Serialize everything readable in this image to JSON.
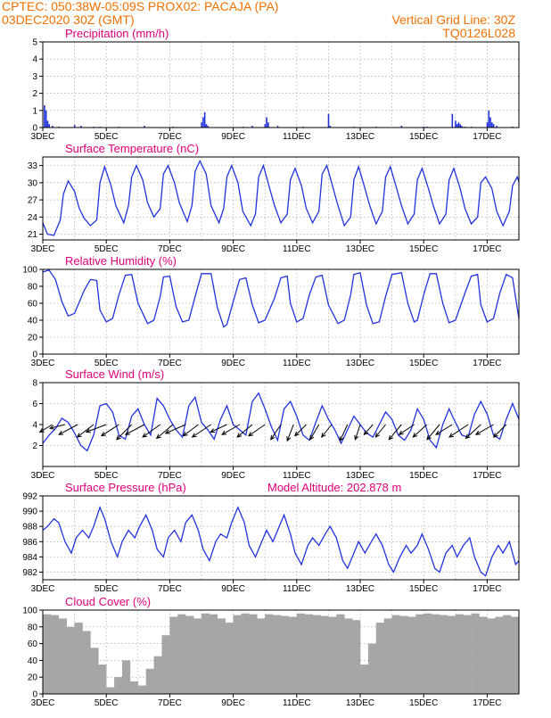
{
  "header": {
    "line1_left": "CPTEC:   050:38W-05:09S   PROX02: PACAJA (PA)",
    "line2_left": "03DEC2020 30Z (GMT)",
    "line1_right": "Vertical Grid Line: 30Z",
    "line2_right": "TQ0126L028",
    "color": "#f07000"
  },
  "title_color": "#e0007a",
  "line_color": "#2233dd",
  "cloud_color": "#a6a6a6",
  "x_ticks": [
    "3DEC",
    "5DEC",
    "7DEC",
    "9DEC",
    "11DEC",
    "13DEC",
    "15DEC",
    "17DEC"
  ],
  "x_range_days": [
    3,
    18
  ],
  "chart_data": [
    {
      "id": "precip",
      "type": "bar",
      "title": "Precipitation (mm/h)",
      "ylim": [
        0,
        5
      ],
      "yticks": [
        0,
        1,
        2,
        3,
        4,
        5
      ],
      "grid": true,
      "x_days": [
        3.05,
        3.1,
        3.15,
        3.2,
        3.3,
        3.5,
        4.0,
        4.2,
        4.6,
        4.8,
        5.4,
        6.2,
        7.1,
        8.0,
        8.05,
        8.1,
        8.15,
        8.2,
        9.3,
        9.6,
        10.0,
        10.05,
        10.1,
        10.4,
        11.2,
        12.0,
        12.05,
        12.8,
        13.5,
        14.3,
        15.0,
        15.1,
        15.9,
        16.0,
        16.05,
        16.1,
        16.15,
        16.2,
        16.3,
        16.5,
        17.0,
        17.05,
        17.1,
        17.15,
        17.2,
        17.3,
        17.8
      ],
      "values": [
        1.3,
        1.0,
        0.4,
        0.2,
        0.1,
        0.05,
        0.15,
        0.1,
        0.05,
        0.05,
        0.05,
        0.1,
        0.05,
        0.3,
        0.6,
        0.9,
        0.2,
        0.1,
        0.05,
        0.1,
        0.2,
        0.6,
        0.3,
        0.1,
        0.05,
        0.8,
        0.1,
        0.05,
        0.05,
        0.1,
        0.05,
        0.05,
        0.8,
        0.4,
        0.2,
        0.3,
        0.2,
        0.1,
        0.05,
        0.05,
        0.3,
        1.0,
        0.6,
        0.3,
        0.2,
        0.1,
        0.05
      ]
    },
    {
      "id": "temp",
      "type": "line",
      "title": "Surface Temperature (nC)",
      "ylim": [
        20,
        34.5
      ],
      "yticks": [
        21,
        24,
        27,
        30,
        33
      ],
      "grid": true,
      "x_days": [
        3.0,
        3.15,
        3.35,
        3.55,
        3.65,
        3.8,
        4.0,
        4.15,
        4.3,
        4.5,
        4.7,
        4.8,
        4.95,
        5.15,
        5.3,
        5.55,
        5.7,
        5.8,
        5.95,
        6.15,
        6.3,
        6.5,
        6.7,
        6.8,
        6.95,
        7.15,
        7.3,
        7.55,
        7.7,
        7.8,
        7.95,
        8.15,
        8.3,
        8.55,
        8.7,
        8.8,
        8.95,
        9.15,
        9.3,
        9.55,
        9.7,
        9.8,
        9.95,
        10.15,
        10.3,
        10.5,
        10.7,
        10.8,
        10.95,
        11.15,
        11.3,
        11.5,
        11.7,
        11.8,
        11.95,
        12.15,
        12.3,
        12.5,
        12.7,
        12.8,
        12.95,
        13.15,
        13.3,
        13.5,
        13.7,
        13.8,
        13.95,
        14.15,
        14.3,
        14.5,
        14.7,
        14.8,
        14.95,
        15.15,
        15.3,
        15.5,
        15.7,
        15.8,
        15.95,
        16.15,
        16.3,
        16.5,
        16.7,
        16.8,
        16.95,
        17.15,
        17.3,
        17.5,
        17.7,
        17.8,
        17.95,
        18.0
      ],
      "values": [
        23.0,
        21.0,
        20.8,
        23.5,
        28.0,
        30.3,
        28.5,
        25.5,
        23.8,
        22.5,
        23.5,
        30.0,
        32.8,
        29.5,
        26.0,
        23.0,
        26.0,
        31.0,
        33.0,
        30.5,
        26.5,
        24.0,
        25.5,
        31.5,
        33.0,
        30.0,
        26.5,
        23.2,
        26.0,
        32.0,
        33.8,
        31.5,
        26.0,
        23.0,
        25.5,
        31.0,
        33.0,
        30.0,
        25.0,
        22.5,
        24.5,
        31.0,
        33.0,
        29.0,
        26.0,
        23.0,
        24.5,
        30.5,
        32.5,
        29.5,
        25.5,
        23.0,
        25.0,
        31.5,
        33.0,
        29.0,
        26.0,
        22.5,
        24.0,
        30.5,
        32.8,
        29.0,
        26.0,
        22.8,
        25.0,
        31.0,
        32.8,
        29.0,
        26.0,
        22.8,
        24.5,
        30.5,
        32.5,
        29.0,
        26.0,
        22.8,
        24.5,
        30.5,
        32.5,
        29.0,
        25.5,
        22.8,
        24.0,
        30.0,
        31.0,
        29.0,
        25.0,
        22.5,
        25.0,
        29.5,
        31.0,
        30.2
      ]
    },
    {
      "id": "rh",
      "type": "line",
      "title": "Relative Humidity (%)",
      "ylim": [
        0,
        100
      ],
      "yticks": [
        0,
        20,
        40,
        60,
        80,
        100
      ],
      "grid": true,
      "x_days": [
        3.0,
        3.2,
        3.4,
        3.6,
        3.8,
        4.0,
        4.3,
        4.5,
        4.7,
        4.8,
        5.0,
        5.2,
        5.4,
        5.6,
        5.8,
        6.0,
        6.3,
        6.5,
        6.7,
        6.8,
        7.0,
        7.2,
        7.4,
        7.6,
        7.8,
        8.0,
        8.3,
        8.5,
        8.7,
        8.8,
        9.0,
        9.2,
        9.4,
        9.6,
        9.8,
        10.0,
        10.3,
        10.5,
        10.7,
        10.8,
        11.0,
        11.2,
        11.4,
        11.6,
        11.8,
        12.0,
        12.3,
        12.5,
        12.7,
        12.8,
        13.0,
        13.2,
        13.4,
        13.6,
        13.8,
        14.0,
        14.3,
        14.5,
        14.7,
        14.8,
        15.0,
        15.2,
        15.4,
        15.6,
        15.8,
        16.0,
        16.3,
        16.5,
        16.7,
        16.8,
        17.0,
        17.2,
        17.4,
        17.6,
        17.8,
        18.0
      ],
      "values": [
        97,
        99,
        88,
        62,
        45,
        48,
        75,
        88,
        87,
        52,
        38,
        42,
        70,
        93,
        94,
        60,
        36,
        40,
        68,
        91,
        92,
        56,
        38,
        40,
        68,
        95,
        95,
        55,
        32,
        35,
        62,
        88,
        90,
        58,
        37,
        40,
        66,
        90,
        92,
        60,
        38,
        42,
        70,
        91,
        93,
        58,
        36,
        40,
        70,
        94,
        96,
        58,
        36,
        38,
        68,
        94,
        96,
        60,
        38,
        40,
        70,
        95,
        95,
        60,
        37,
        40,
        72,
        92,
        94,
        58,
        38,
        42,
        72,
        94,
        90,
        42
      ]
    },
    {
      "id": "wind",
      "type": "line",
      "title": "Surface Wind (m/s)",
      "ylim": [
        0,
        8
      ],
      "yticks": [
        2,
        4,
        6,
        8
      ],
      "grid": true,
      "x_days": [
        3.0,
        3.2,
        3.4,
        3.6,
        3.8,
        4.0,
        4.2,
        4.4,
        4.6,
        4.8,
        5.0,
        5.2,
        5.4,
        5.6,
        5.8,
        6.0,
        6.2,
        6.4,
        6.6,
        6.8,
        7.0,
        7.2,
        7.4,
        7.6,
        7.8,
        8.0,
        8.2,
        8.4,
        8.6,
        8.8,
        9.0,
        9.2,
        9.4,
        9.6,
        9.8,
        10.0,
        10.2,
        10.4,
        10.6,
        10.8,
        11.0,
        11.2,
        11.4,
        11.6,
        11.8,
        12.0,
        12.2,
        12.4,
        12.6,
        12.8,
        13.0,
        13.2,
        13.4,
        13.6,
        13.8,
        14.0,
        14.2,
        14.4,
        14.6,
        14.8,
        15.0,
        15.2,
        15.4,
        15.6,
        15.8,
        16.0,
        16.2,
        16.4,
        16.6,
        16.8,
        17.0,
        17.2,
        17.4,
        17.6,
        17.8,
        18.0
      ],
      "values": [
        2.2,
        3.0,
        3.6,
        4.6,
        4.2,
        3.2,
        2.0,
        1.5,
        3.0,
        5.8,
        6.0,
        5.2,
        3.0,
        2.6,
        4.8,
        5.5,
        4.0,
        3.0,
        6.5,
        5.8,
        4.5,
        3.5,
        2.8,
        5.8,
        6.6,
        4.2,
        3.5,
        2.6,
        4.5,
        5.8,
        4.0,
        3.5,
        3.0,
        6.2,
        7.0,
        5.5,
        3.8,
        2.5,
        5.5,
        6.2,
        4.8,
        3.0,
        2.5,
        4.2,
        5.8,
        4.5,
        3.5,
        2.2,
        3.5,
        4.8,
        4.0,
        3.2,
        2.8,
        4.0,
        5.2,
        4.5,
        3.0,
        2.5,
        3.5,
        5.5,
        4.5,
        2.5,
        1.8,
        4.0,
        5.5,
        4.2,
        3.0,
        2.8,
        5.0,
        6.2,
        5.0,
        3.0,
        2.6,
        4.5,
        6.0,
        4.5
      ],
      "arrows": {
        "x_days": [
          3.3,
          3.7,
          4.1,
          4.6,
          5.0,
          5.4,
          5.8,
          6.2,
          6.7,
          7.1,
          7.5,
          7.9,
          8.3,
          8.8,
          9.2,
          9.6,
          10.0,
          10.5,
          10.9,
          11.3,
          11.7,
          12.1,
          12.6,
          13.0,
          13.4,
          13.8,
          14.3,
          14.7,
          15.1,
          15.5,
          15.9,
          16.4,
          16.8,
          17.2,
          17.6
        ],
        "u": [
          -1.0,
          -1.2,
          -1.5,
          -1.3,
          -1.6,
          -1.4,
          -1.2,
          -1.5,
          -1.4,
          -1.3,
          -1.6,
          -1.2,
          -1.5,
          -1.3,
          -1.4,
          -1.2,
          -1.3,
          -0.8,
          -0.5,
          -0.9,
          -0.7,
          -0.8,
          -0.6,
          -0.4,
          -0.7,
          -0.8,
          -1.0,
          -1.2,
          -1.1,
          -1.0,
          -1.3,
          -1.5,
          -1.2,
          -1.4,
          -1.0
        ],
        "v": [
          -0.6,
          -0.3,
          -0.8,
          -1.0,
          -0.6,
          -0.9,
          -1.2,
          -0.8,
          -1.0,
          -1.1,
          -0.7,
          -0.9,
          -1.0,
          -0.6,
          -0.8,
          -1.0,
          -0.9,
          -1.2,
          -1.3,
          -0.9,
          -1.2,
          -1.0,
          -1.3,
          -1.2,
          -0.8,
          -1.0,
          -1.2,
          -0.8,
          -1.0,
          -1.2,
          -0.8,
          -1.0,
          -1.1,
          -0.8,
          -1.0
        ]
      }
    },
    {
      "id": "pres",
      "type": "line",
      "title": "Surface Pressure (hPa)",
      "subtitle": "Model Altitude: 202.878  m",
      "ylim": [
        981,
        992
      ],
      "yticks": [
        982,
        984,
        986,
        988,
        990,
        992
      ],
      "grid": true,
      "x_days": [
        3.0,
        3.15,
        3.35,
        3.5,
        3.7,
        3.9,
        4.05,
        4.25,
        4.45,
        4.6,
        4.8,
        4.95,
        5.15,
        5.35,
        5.5,
        5.7,
        5.9,
        6.05,
        6.25,
        6.45,
        6.6,
        6.8,
        6.95,
        7.15,
        7.35,
        7.5,
        7.7,
        7.9,
        8.05,
        8.25,
        8.45,
        8.6,
        8.8,
        8.95,
        9.15,
        9.35,
        9.5,
        9.7,
        9.9,
        10.05,
        10.25,
        10.45,
        10.6,
        10.8,
        10.95,
        11.15,
        11.35,
        11.5,
        11.7,
        11.9,
        12.05,
        12.25,
        12.45,
        12.6,
        12.8,
        12.95,
        13.15,
        13.35,
        13.5,
        13.7,
        13.9,
        14.05,
        14.25,
        14.45,
        14.6,
        14.8,
        14.95,
        15.15,
        15.35,
        15.5,
        15.7,
        15.9,
        16.05,
        16.25,
        16.45,
        16.6,
        16.8,
        16.95,
        17.15,
        17.35,
        17.5,
        17.7,
        17.9,
        18.0
      ],
      "values": [
        987.5,
        988.0,
        989.0,
        988.5,
        986.0,
        984.5,
        986.5,
        987.5,
        986.5,
        988.0,
        990.5,
        989.0,
        986.0,
        984.0,
        986.0,
        987.5,
        986.5,
        988.0,
        989.5,
        987.5,
        985.0,
        984.0,
        986.5,
        987.5,
        986.0,
        988.5,
        989.5,
        987.5,
        985.0,
        983.5,
        986.0,
        987.0,
        986.5,
        988.5,
        990.5,
        988.5,
        985.5,
        984.0,
        986.0,
        987.5,
        986.0,
        988.0,
        989.5,
        987.0,
        984.5,
        983.0,
        985.5,
        986.5,
        985.5,
        987.0,
        988.0,
        986.5,
        983.5,
        982.5,
        984.5,
        986.0,
        984.5,
        986.0,
        987.0,
        985.5,
        983.0,
        982.0,
        984.0,
        985.5,
        984.5,
        985.5,
        987.0,
        985.0,
        982.5,
        982.0,
        984.5,
        985.5,
        984.0,
        985.5,
        986.5,
        984.0,
        982.0,
        981.5,
        984.0,
        985.5,
        984.5,
        986.0,
        983.0,
        983.5
      ]
    },
    {
      "id": "cloud",
      "type": "bar",
      "title": "Cloud Cover (%)",
      "ylim": [
        0,
        100
      ],
      "yticks": [
        0,
        20,
        40,
        60,
        80,
        100
      ],
      "grid": true,
      "x_days": [
        3.0,
        3.25,
        3.5,
        3.75,
        4.0,
        4.25,
        4.5,
        4.75,
        5.0,
        5.25,
        5.5,
        5.75,
        6.0,
        6.25,
        6.5,
        6.75,
        7.0,
        7.25,
        7.5,
        7.75,
        8.0,
        8.25,
        8.5,
        8.75,
        9.0,
        9.25,
        9.5,
        9.75,
        10.0,
        10.25,
        10.5,
        10.75,
        11.0,
        11.25,
        11.5,
        11.75,
        12.0,
        12.25,
        12.5,
        12.75,
        13.0,
        13.25,
        13.5,
        13.75,
        14.0,
        14.25,
        14.5,
        14.75,
        15.0,
        15.25,
        15.5,
        15.75,
        16.0,
        16.25,
        16.5,
        16.75,
        17.0,
        17.25,
        17.5,
        17.75
      ],
      "values": [
        95,
        94,
        90,
        80,
        85,
        75,
        55,
        35,
        8,
        20,
        40,
        15,
        10,
        30,
        45,
        70,
        92,
        95,
        93,
        90,
        96,
        95,
        90,
        85,
        94,
        96,
        95,
        90,
        95,
        94,
        93,
        92,
        96,
        95,
        94,
        93,
        92,
        95,
        90,
        88,
        35,
        60,
        85,
        90,
        94,
        93,
        92,
        95,
        96,
        95,
        94,
        93,
        95,
        94,
        96,
        92,
        90,
        92,
        94,
        92
      ]
    }
  ]
}
